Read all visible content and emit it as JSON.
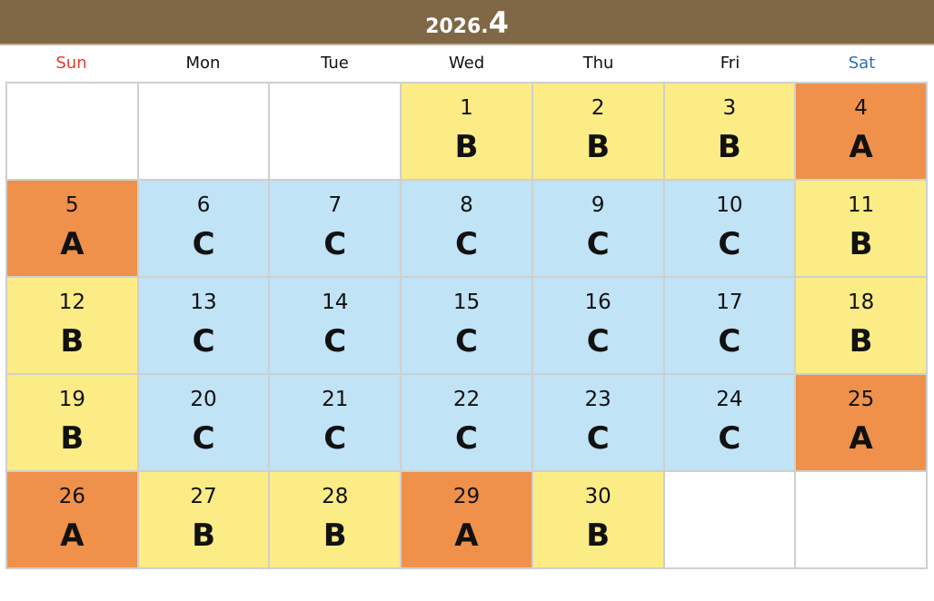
{
  "header": {
    "year": "2026.",
    "month": "4",
    "background": "#806745"
  },
  "weekdays": [
    "Sun",
    "Mon",
    "Tue",
    "Wed",
    "Thu",
    "Fri",
    "Sat"
  ],
  "colors": {
    "A": "#ef914a",
    "B": "#fbec86",
    "C": "#c0e3f5",
    "empty": "#ffffff"
  },
  "weeks": [
    [
      null,
      null,
      null,
      {
        "day": "1",
        "code": "B"
      },
      {
        "day": "2",
        "code": "B"
      },
      {
        "day": "3",
        "code": "B"
      },
      {
        "day": "4",
        "code": "A"
      }
    ],
    [
      {
        "day": "5",
        "code": "A"
      },
      {
        "day": "6",
        "code": "C"
      },
      {
        "day": "7",
        "code": "C"
      },
      {
        "day": "8",
        "code": "C"
      },
      {
        "day": "9",
        "code": "C"
      },
      {
        "day": "10",
        "code": "C"
      },
      {
        "day": "11",
        "code": "B"
      }
    ],
    [
      {
        "day": "12",
        "code": "B"
      },
      {
        "day": "13",
        "code": "C"
      },
      {
        "day": "14",
        "code": "C"
      },
      {
        "day": "15",
        "code": "C"
      },
      {
        "day": "16",
        "code": "C"
      },
      {
        "day": "17",
        "code": "C"
      },
      {
        "day": "18",
        "code": "B"
      }
    ],
    [
      {
        "day": "19",
        "code": "B"
      },
      {
        "day": "20",
        "code": "C"
      },
      {
        "day": "21",
        "code": "C"
      },
      {
        "day": "22",
        "code": "C"
      },
      {
        "day": "23",
        "code": "C"
      },
      {
        "day": "24",
        "code": "C"
      },
      {
        "day": "25",
        "code": "A"
      }
    ],
    [
      {
        "day": "26",
        "code": "A"
      },
      {
        "day": "27",
        "code": "B"
      },
      {
        "day": "28",
        "code": "B"
      },
      {
        "day": "29",
        "code": "A"
      },
      {
        "day": "30",
        "code": "B"
      },
      null,
      null
    ]
  ]
}
